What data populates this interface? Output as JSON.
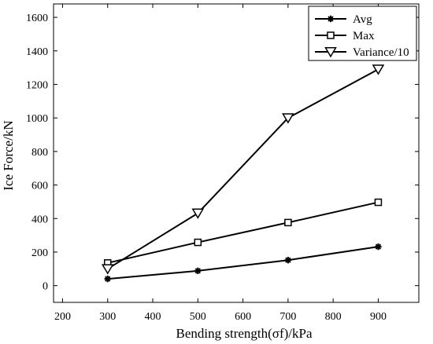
{
  "chart_data": {
    "type": "line",
    "title": "",
    "xlabel": "Bending  strength(σf)/kPa",
    "ylabel": "Ice  Force/kN",
    "xlim": [
      180,
      990
    ],
    "ylim": [
      -100,
      1680
    ],
    "xticks": [
      200,
      300,
      400,
      500,
      600,
      700,
      800,
      900
    ],
    "yticks": [
      0,
      200,
      400,
      600,
      800,
      1000,
      1200,
      1400,
      1600
    ],
    "grid": false,
    "legend_position": "top-right",
    "x": [
      300,
      500,
      700,
      900
    ],
    "series": [
      {
        "name": "Avg",
        "marker": "asterisk",
        "values": [
          40,
          88,
          152,
          232
        ]
      },
      {
        "name": "Max",
        "marker": "square",
        "values": [
          135,
          258,
          376,
          497
        ]
      },
      {
        "name": "Variance/10",
        "marker": "triangle-down",
        "values": [
          100,
          432,
          1000,
          1290
        ]
      }
    ],
    "line_color": "#000000"
  }
}
